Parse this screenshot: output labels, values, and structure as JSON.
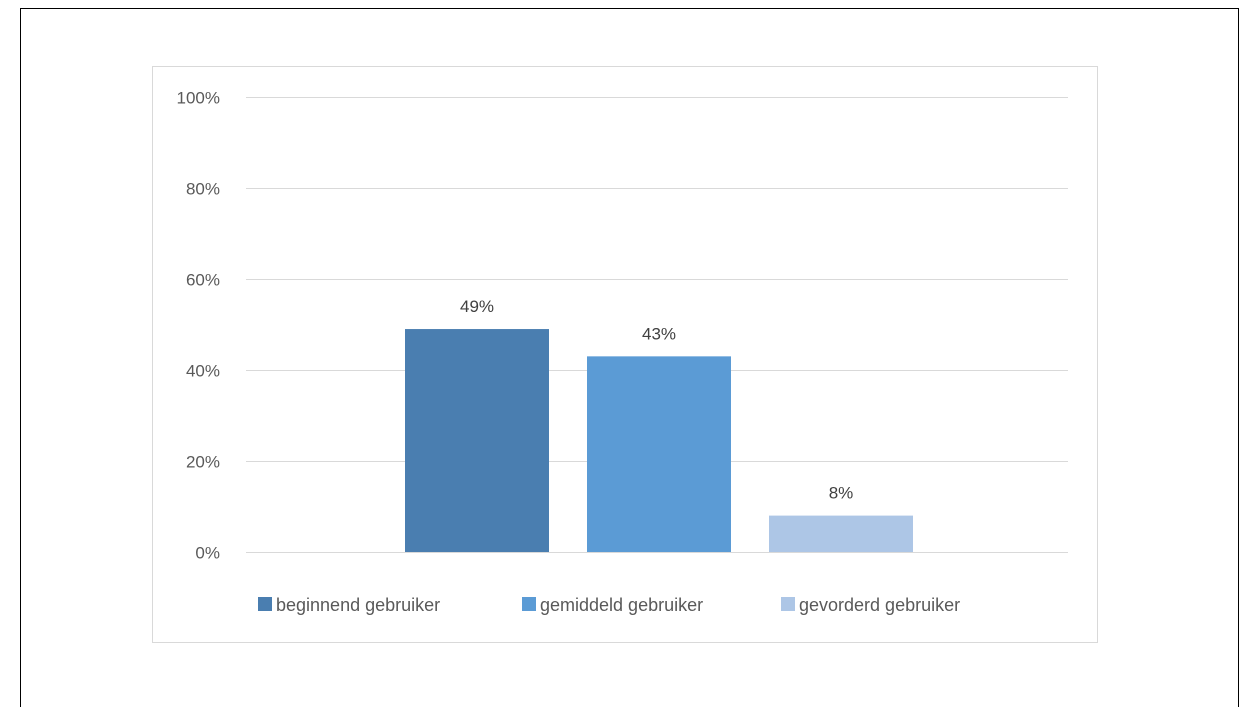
{
  "chart_data": {
    "type": "bar",
    "categories": [
      "beginnend gebruiker",
      "gemiddeld gebruiker",
      "gevorderd gebruiker"
    ],
    "values": [
      49,
      43,
      8
    ],
    "value_labels": [
      "49%",
      "43%",
      "8%"
    ],
    "colors": [
      "#4a7eb0",
      "#5b9bd5",
      "#adc6e6"
    ],
    "ylim": [
      0,
      100
    ],
    "yticks": [
      0,
      20,
      40,
      60,
      80,
      100
    ],
    "ytick_labels": [
      "0%",
      "20%",
      "40%",
      "60%",
      "80%",
      "100%"
    ],
    "gridlines": true,
    "legend_position": "bottom",
    "gridline_color": "#d9d9d9"
  }
}
